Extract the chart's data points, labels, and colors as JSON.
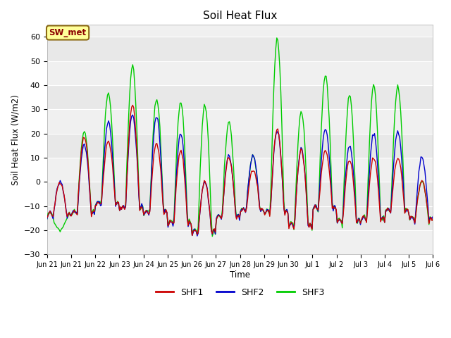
{
  "title": "Soil Heat Flux",
  "ylabel": "Soil Heat Flux (W/m2)",
  "xlabel": "Time",
  "ylim": [
    -30,
    65
  ],
  "yticks": [
    -30,
    -20,
    -10,
    0,
    10,
    20,
    30,
    40,
    50,
    60
  ],
  "fig_bg_color": "#ffffff",
  "plot_bg_color": "#e8e8e8",
  "band_color_light": "#f0f0f0",
  "band_color_dark": "#dcdcdc",
  "line_colors": {
    "SHF1": "#cc0000",
    "SHF2": "#0000cc",
    "SHF3": "#00cc00"
  },
  "line_width": 1.0,
  "annotation_text": "SW_met",
  "annotation_bg": "#ffff99",
  "annotation_border": "#8b6914",
  "annotation_text_color": "#8b0000",
  "grid_color": "#ffffff",
  "grid_linewidth": 0.8,
  "num_points": 384,
  "x_tick_labels": [
    "Jun 21",
    "Jun 22",
    "Jun 23",
    "Jun 24",
    "Jun 25",
    "Jun 26",
    "Jun 27",
    "Jun 28",
    "Jun 29",
    "Jun 30",
    "Jul 1",
    "Jul 2",
    "Jul 3",
    "Jul 4",
    "Jul 5",
    "Jul 6"
  ],
  "x_start": "Jun 20",
  "x_end": "Jul 6"
}
